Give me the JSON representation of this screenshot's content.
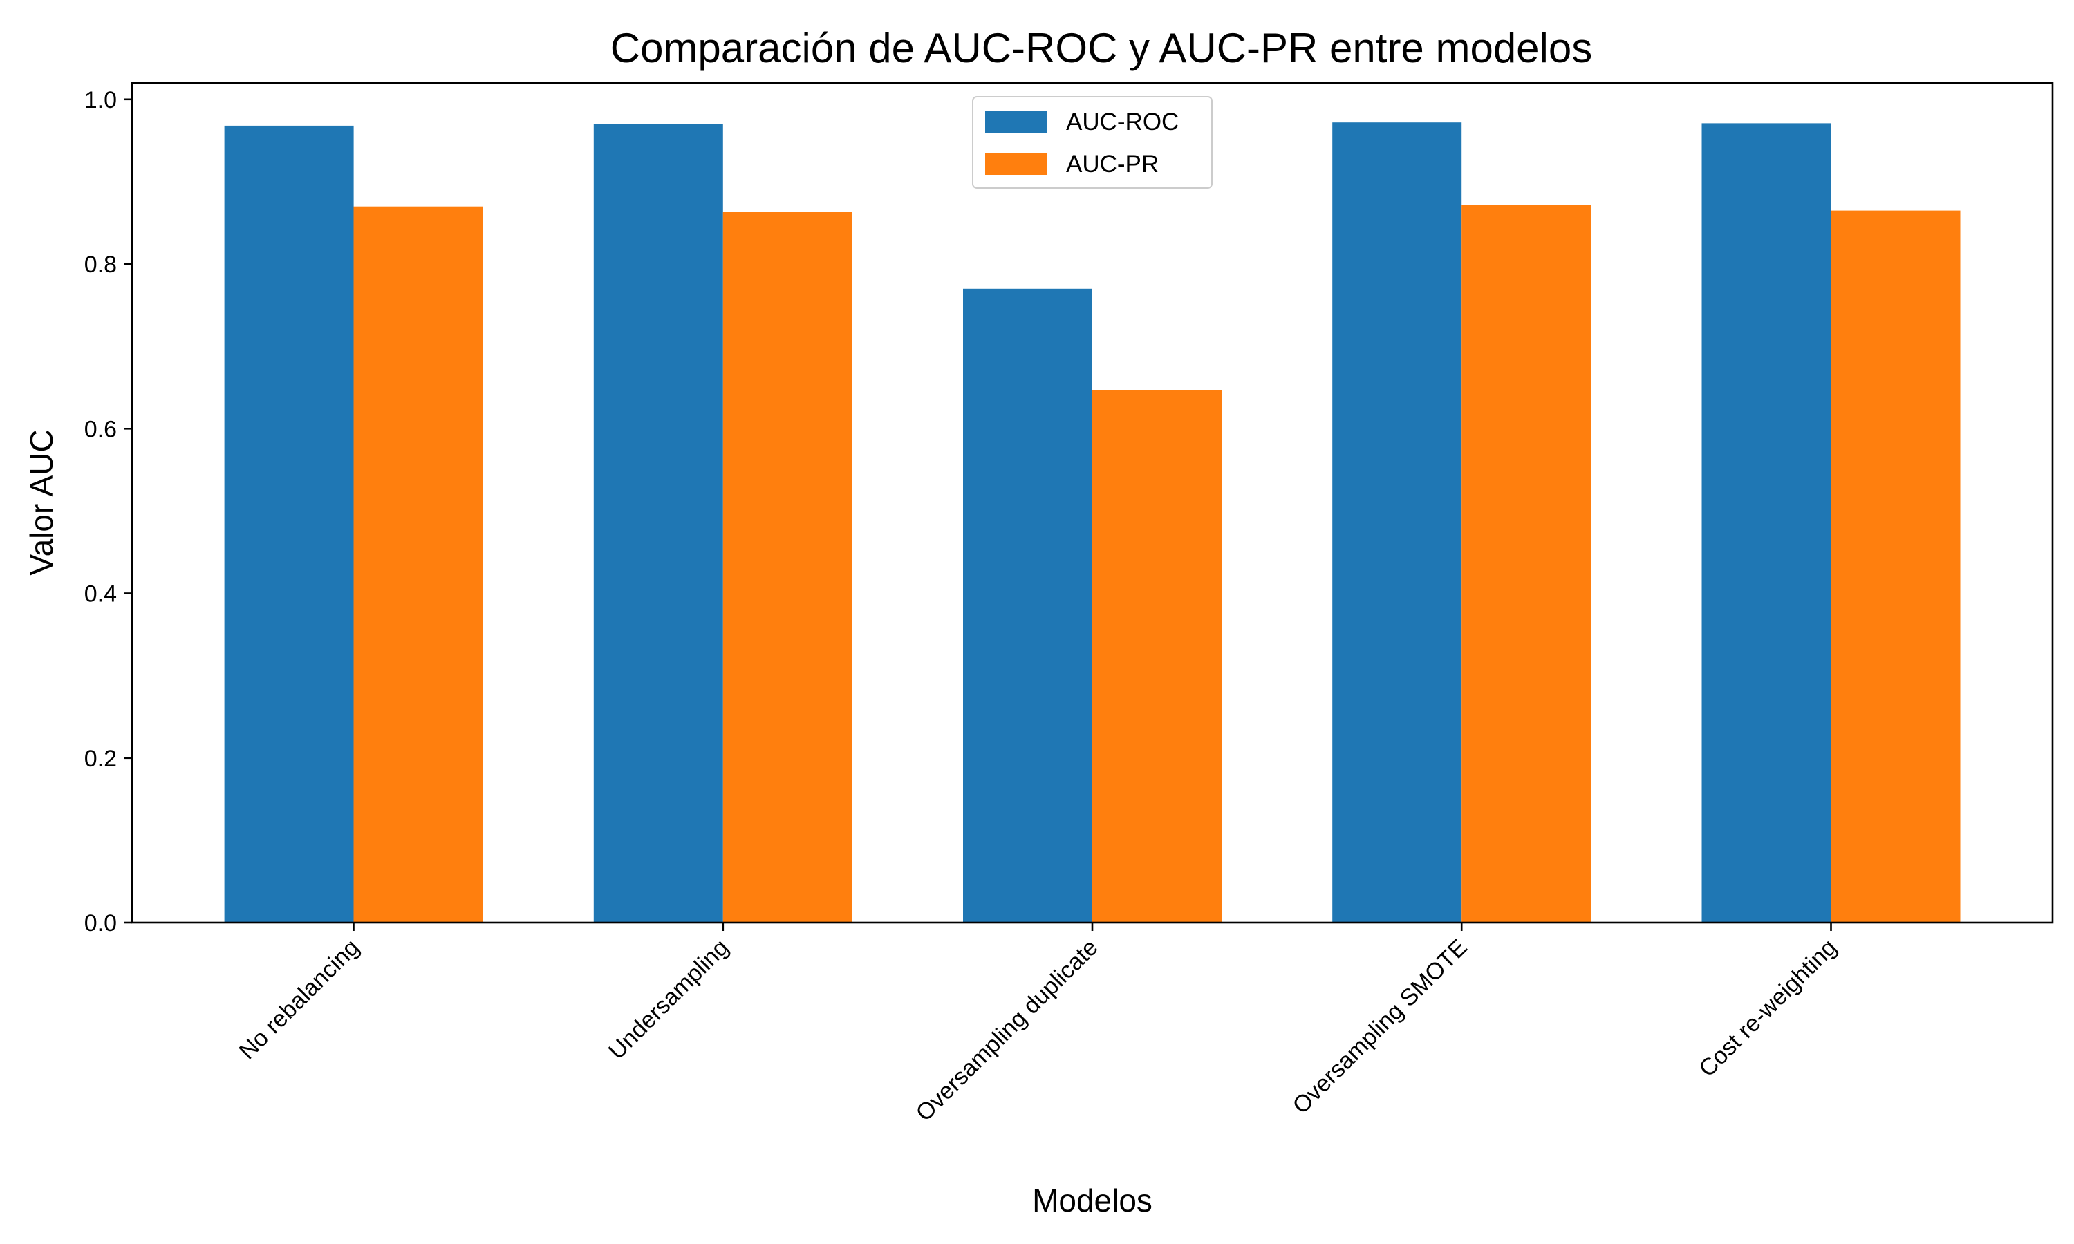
{
  "chart_data": {
    "type": "bar",
    "title": "Comparación de AUC-ROC y AUC-PR entre modelos",
    "xlabel": "Modelos",
    "ylabel": "Valor AUC",
    "categories": [
      "No rebalancing",
      "Undersampling",
      "Oversampling duplicate",
      "Oversampling SMOTE",
      "Cost re-weighting"
    ],
    "series": [
      {
        "name": "AUC-ROC",
        "color": "#1f77b4",
        "values": [
          0.968,
          0.97,
          0.77,
          0.972,
          0.971
        ]
      },
      {
        "name": "AUC-PR",
        "color": "#ff7f0e",
        "values": [
          0.87,
          0.863,
          0.647,
          0.872,
          0.865
        ]
      }
    ],
    "ylim": [
      0,
      1.02
    ],
    "yticks": [
      0.0,
      0.2,
      0.4,
      0.6,
      0.8,
      1.0
    ],
    "ytick_labels": [
      "0.0",
      "0.2",
      "0.4",
      "0.6",
      "0.8",
      "1.0"
    ],
    "legend": "upper-center",
    "grid": false
  }
}
